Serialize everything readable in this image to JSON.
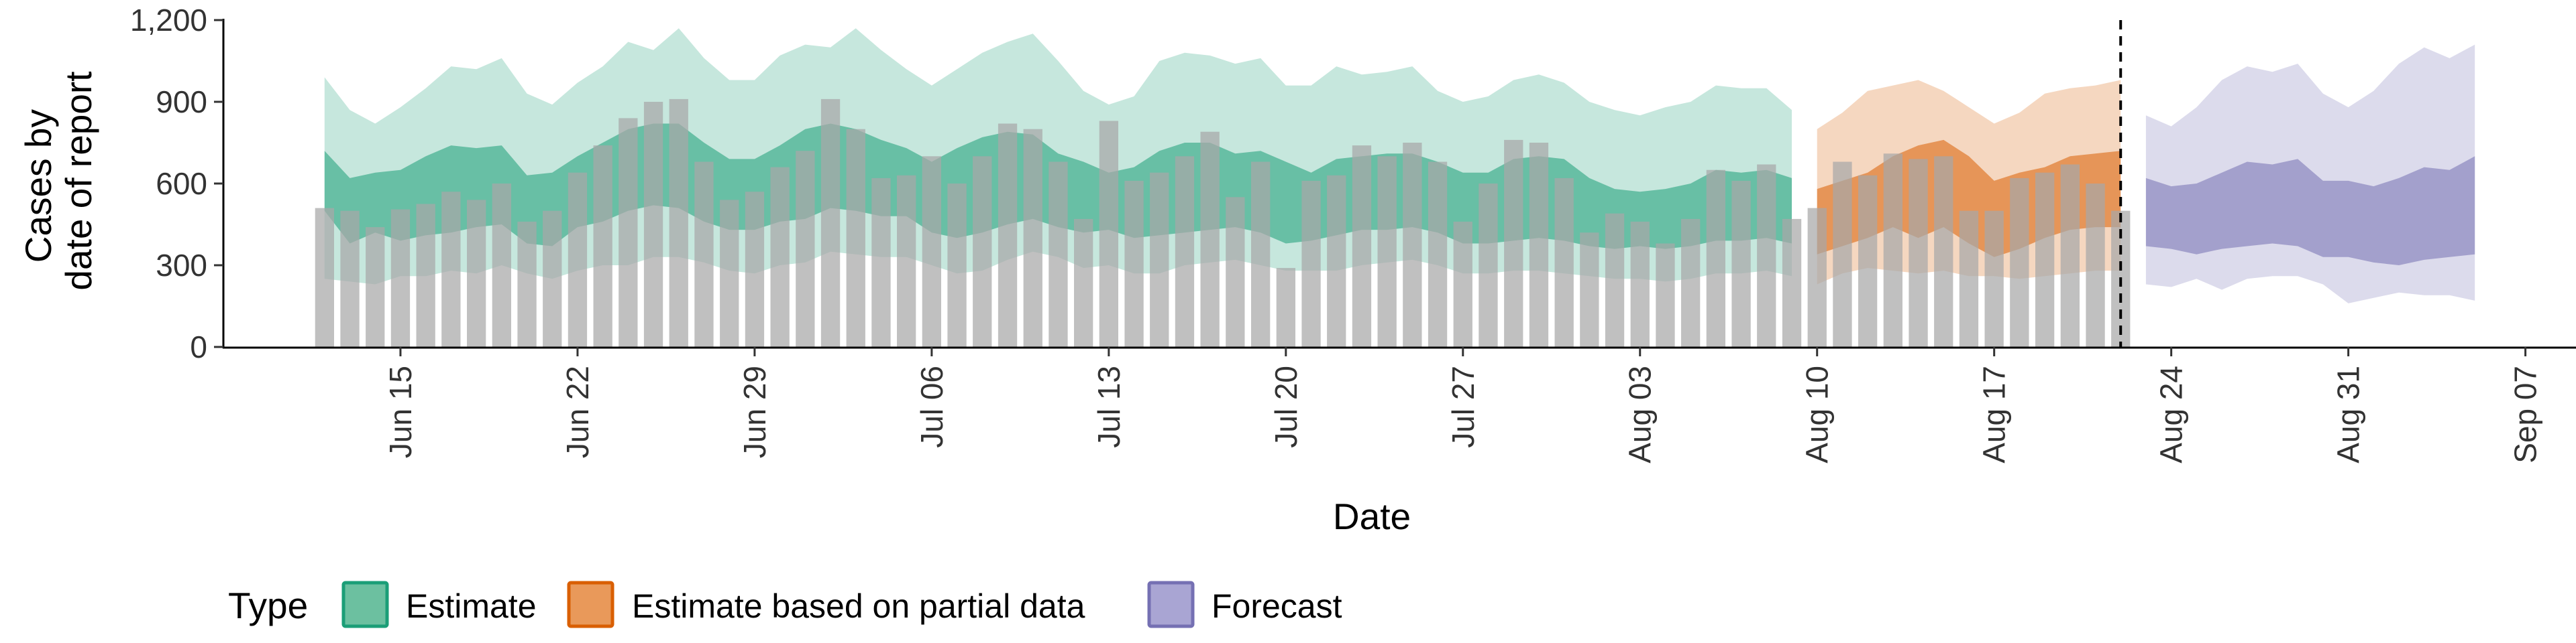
{
  "chart_data": {
    "type": "area",
    "xlabel": "Date",
    "ylabel_lines": [
      "Cases by",
      "date of report"
    ],
    "ylim": [
      0,
      1200
    ],
    "y_ticks": [
      0,
      300,
      600,
      900,
      1200
    ],
    "y_tick_labels": [
      "0",
      "300",
      "600",
      "900",
      "1,200"
    ],
    "x_range": [
      "2020-06-08",
      "2020-09-09"
    ],
    "x_ticks": [
      "2020-06-15",
      "2020-06-22",
      "2020-06-29",
      "2020-07-06",
      "2020-07-13",
      "2020-07-20",
      "2020-07-27",
      "2020-08-03",
      "2020-08-10",
      "2020-08-17",
      "2020-08-24",
      "2020-08-31",
      "2020-09-07"
    ],
    "x_tick_labels": [
      "Jun 15",
      "Jun 22",
      "Jun 29",
      "Jul 06",
      "Jul 13",
      "Jul 20",
      "Jul 27",
      "Aug 03",
      "Aug 10",
      "Aug 17",
      "Aug 24",
      "Aug 31",
      "Sep 07"
    ],
    "forecast_start_line": "2020-08-22",
    "reported_cases": {
      "dates": [
        "2020-06-12",
        "2020-06-13",
        "2020-06-14",
        "2020-06-15",
        "2020-06-16",
        "2020-06-17",
        "2020-06-18",
        "2020-06-19",
        "2020-06-20",
        "2020-06-21",
        "2020-06-22",
        "2020-06-23",
        "2020-06-24",
        "2020-06-25",
        "2020-06-26",
        "2020-06-27",
        "2020-06-28",
        "2020-06-29",
        "2020-06-30",
        "2020-07-01",
        "2020-07-02",
        "2020-07-03",
        "2020-07-04",
        "2020-07-05",
        "2020-07-06",
        "2020-07-07",
        "2020-07-08",
        "2020-07-09",
        "2020-07-10",
        "2020-07-11",
        "2020-07-12",
        "2020-07-13",
        "2020-07-14",
        "2020-07-15",
        "2020-07-16",
        "2020-07-17",
        "2020-07-18",
        "2020-07-19",
        "2020-07-20",
        "2020-07-21",
        "2020-07-22",
        "2020-07-23",
        "2020-07-24",
        "2020-07-25",
        "2020-07-26",
        "2020-07-27",
        "2020-07-28",
        "2020-07-29",
        "2020-07-30",
        "2020-07-31",
        "2020-08-01",
        "2020-08-02",
        "2020-08-03",
        "2020-08-04",
        "2020-08-05",
        "2020-08-06",
        "2020-08-07",
        "2020-08-08",
        "2020-08-09",
        "2020-08-10",
        "2020-08-11",
        "2020-08-12",
        "2020-08-13",
        "2020-08-14",
        "2020-08-15",
        "2020-08-16",
        "2020-08-17",
        "2020-08-18",
        "2020-08-19",
        "2020-08-20",
        "2020-08-21",
        "2020-08-22"
      ],
      "values": [
        510,
        500,
        440,
        505,
        525,
        570,
        540,
        600,
        460,
        500,
        640,
        740,
        840,
        900,
        910,
        680,
        540,
        570,
        660,
        720,
        910,
        800,
        620,
        630,
        700,
        600,
        700,
        820,
        800,
        680,
        470,
        830,
        610,
        640,
        700,
        790,
        550,
        680,
        290,
        610,
        630,
        740,
        700,
        750,
        680,
        460,
        600,
        760,
        750,
        620,
        420,
        490,
        460,
        380,
        470,
        650,
        610,
        670,
        470,
        510,
        680,
        630,
        710,
        690,
        700,
        500,
        500,
        620,
        640,
        670,
        600,
        500
      ]
    },
    "series": [
      {
        "name": "Estimate",
        "color": "#1b9e77",
        "dates": [
          "2020-06-12",
          "2020-06-13",
          "2020-06-14",
          "2020-06-15",
          "2020-06-16",
          "2020-06-17",
          "2020-06-18",
          "2020-06-19",
          "2020-06-20",
          "2020-06-21",
          "2020-06-22",
          "2020-06-23",
          "2020-06-24",
          "2020-06-25",
          "2020-06-26",
          "2020-06-27",
          "2020-06-28",
          "2020-06-29",
          "2020-06-30",
          "2020-07-01",
          "2020-07-02",
          "2020-07-03",
          "2020-07-04",
          "2020-07-05",
          "2020-07-06",
          "2020-07-07",
          "2020-07-08",
          "2020-07-09",
          "2020-07-10",
          "2020-07-11",
          "2020-07-12",
          "2020-07-13",
          "2020-07-14",
          "2020-07-15",
          "2020-07-16",
          "2020-07-17",
          "2020-07-18",
          "2020-07-19",
          "2020-07-20",
          "2020-07-21",
          "2020-07-22",
          "2020-07-23",
          "2020-07-24",
          "2020-07-25",
          "2020-07-26",
          "2020-07-27",
          "2020-07-28",
          "2020-07-29",
          "2020-07-30",
          "2020-07-31",
          "2020-08-01",
          "2020-08-02",
          "2020-08-03",
          "2020-08-04",
          "2020-08-05",
          "2020-08-06",
          "2020-08-07",
          "2020-08-08",
          "2020-08-09"
        ],
        "lower_90": [
          250,
          240,
          230,
          260,
          260,
          280,
          270,
          300,
          270,
          250,
          280,
          300,
          300,
          330,
          330,
          310,
          280,
          270,
          300,
          310,
          350,
          340,
          330,
          330,
          300,
          270,
          280,
          320,
          350,
          330,
          290,
          300,
          270,
          270,
          300,
          310,
          320,
          300,
          280,
          280,
          280,
          300,
          310,
          320,
          300,
          270,
          270,
          280,
          280,
          270,
          260,
          250,
          250,
          240,
          250,
          270,
          270,
          280,
          260
        ],
        "upper_90": [
          990,
          870,
          820,
          880,
          950,
          1030,
          1020,
          1060,
          930,
          890,
          970,
          1030,
          1120,
          1090,
          1170,
          1060,
          980,
          980,
          1070,
          1110,
          1100,
          1170,
          1090,
          1020,
          960,
          1020,
          1080,
          1120,
          1150,
          1050,
          940,
          890,
          920,
          1050,
          1080,
          1070,
          1040,
          1060,
          960,
          960,
          1030,
          1000,
          1010,
          1030,
          940,
          900,
          920,
          980,
          1000,
          970,
          900,
          870,
          850,
          880,
          900,
          960,
          950,
          950,
          870
        ],
        "lower_50": [
          500,
          380,
          420,
          390,
          410,
          420,
          440,
          450,
          380,
          370,
          440,
          460,
          500,
          520,
          510,
          460,
          430,
          430,
          460,
          470,
          510,
          500,
          480,
          480,
          420,
          400,
          420,
          450,
          470,
          440,
          420,
          430,
          400,
          410,
          420,
          430,
          440,
          420,
          380,
          390,
          410,
          430,
          430,
          440,
          420,
          380,
          380,
          390,
          400,
          390,
          370,
          360,
          370,
          360,
          370,
          390,
          390,
          400,
          380
        ],
        "upper_50": [
          720,
          620,
          640,
          650,
          700,
          740,
          730,
          740,
          630,
          640,
          700,
          750,
          800,
          820,
          820,
          750,
          690,
          690,
          740,
          800,
          820,
          800,
          760,
          730,
          680,
          730,
          770,
          790,
          780,
          710,
          680,
          640,
          660,
          720,
          750,
          750,
          710,
          720,
          680,
          640,
          690,
          700,
          710,
          710,
          680,
          640,
          640,
          690,
          700,
          690,
          620,
          580,
          570,
          580,
          600,
          650,
          640,
          650,
          620
        ]
      },
      {
        "name": "Estimate based on partial data",
        "color": "#d95f02",
        "dates": [
          "2020-08-10",
          "2020-08-11",
          "2020-08-12",
          "2020-08-13",
          "2020-08-14",
          "2020-08-15",
          "2020-08-16",
          "2020-08-17",
          "2020-08-18",
          "2020-08-19",
          "2020-08-20",
          "2020-08-21",
          "2020-08-22"
        ],
        "lower_90": [
          230,
          270,
          290,
          280,
          270,
          280,
          260,
          260,
          250,
          260,
          270,
          280,
          280
        ],
        "upper_90": [
          800,
          860,
          940,
          960,
          980,
          940,
          880,
          820,
          860,
          930,
          950,
          960,
          980
        ],
        "lower_50": [
          340,
          370,
          400,
          440,
          400,
          440,
          380,
          330,
          360,
          400,
          430,
          440,
          440
        ],
        "upper_50": [
          580,
          610,
          640,
          700,
          740,
          760,
          700,
          610,
          640,
          660,
          700,
          710,
          720
        ]
      },
      {
        "name": "Forecast",
        "color": "#7570b3",
        "dates": [
          "2020-08-23",
          "2020-08-24",
          "2020-08-25",
          "2020-08-26",
          "2020-08-27",
          "2020-08-28",
          "2020-08-29",
          "2020-08-30",
          "2020-08-31",
          "2020-09-01",
          "2020-09-02",
          "2020-09-03",
          "2020-09-04",
          "2020-09-05"
        ],
        "lower_90": [
          230,
          220,
          250,
          210,
          250,
          260,
          260,
          230,
          160,
          180,
          200,
          190,
          190,
          170
        ],
        "upper_90": [
          850,
          810,
          880,
          980,
          1030,
          1010,
          1040,
          930,
          880,
          940,
          1040,
          1100,
          1060,
          1110
        ],
        "lower_50": [
          370,
          360,
          340,
          360,
          370,
          380,
          370,
          330,
          330,
          310,
          300,
          320,
          330,
          340
        ],
        "upper_50": [
          620,
          590,
          600,
          640,
          680,
          670,
          690,
          610,
          610,
          590,
          620,
          660,
          650,
          700
        ]
      }
    ],
    "legend": {
      "title": "Type",
      "position": "bottom",
      "entries": [
        {
          "label": "Estimate",
          "fill": "#6cc0a0",
          "stroke": "#1b9e77"
        },
        {
          "label": "Estimate based on partial data",
          "fill": "#e9995a",
          "stroke": "#d95f02"
        },
        {
          "label": "Forecast",
          "fill": "#a9a5d3",
          "stroke": "#7570b3"
        }
      ]
    },
    "colors": {
      "bars": "#a8a8a8",
      "estimate_outer": "#1b9e77",
      "partial_outer": "#d95f02",
      "forecast_outer": "#7570b3"
    }
  }
}
